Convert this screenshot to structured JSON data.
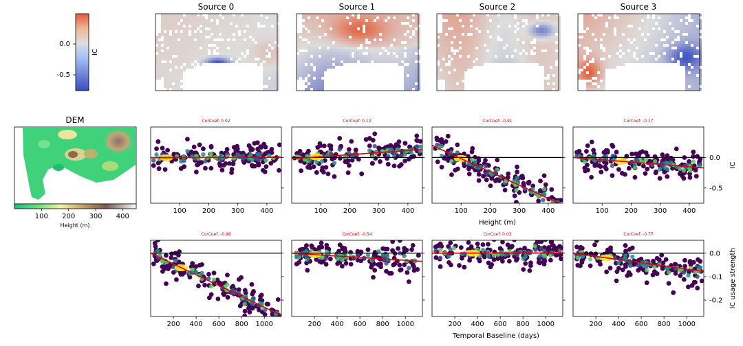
{
  "maps": {
    "titles": [
      "Source 0",
      "Source 1",
      "Source 2",
      "Source 3"
    ],
    "colorbar": {
      "label": "IC",
      "ticks": [
        "0.0",
        "-0.5"
      ],
      "low": "#3b4cc0",
      "mid": "#dddddd",
      "high": "#e8603c"
    }
  },
  "dem": {
    "title": "DEM",
    "xlabel": "Height (m)",
    "ticks": [
      "100",
      "200",
      "300",
      "400"
    ]
  },
  "chart_data": [
    {
      "type": "scatter",
      "row": "height",
      "xlabel": "Height (m)",
      "ylabel": "IC",
      "xlim": [
        0,
        450
      ],
      "ylim": [
        -0.75,
        0.5
      ],
      "xticks": [
        100,
        200,
        300,
        400
      ],
      "yticks": [
        0.0,
        -0.5
      ],
      "panels": [
        {
          "corcoef": "CorCoef: 0.02",
          "fit": [
            [
              0,
              -0.005
            ],
            [
              450,
              0.005
            ]
          ]
        },
        {
          "corcoef": "CorCoef: 0.12",
          "fit": [
            [
              0,
              -0.02
            ],
            [
              450,
              0.13
            ]
          ]
        },
        {
          "corcoef": "CorCoef: -0.91",
          "fit": [
            [
              0,
              0.2
            ],
            [
              450,
              -0.78
            ]
          ]
        },
        {
          "corcoef": "CorCoef: -0.17",
          "fit": [
            [
              0,
              0.0
            ],
            [
              450,
              -0.17
            ]
          ]
        }
      ]
    },
    {
      "type": "scatter",
      "row": "baseline",
      "xlabel": "Temporal Baseline (days)",
      "ylabel": "IC usage strength",
      "xlim": [
        0,
        1150
      ],
      "ylim": [
        -0.27,
        0.055
      ],
      "xticks": [
        200,
        400,
        600,
        800,
        1000
      ],
      "yticks": [
        0.0,
        -0.1,
        -0.2
      ],
      "panels": [
        {
          "corcoef": "CorCoef: -0.96",
          "fit": [
            [
              0,
              0.0
            ],
            [
              1150,
              -0.265
            ]
          ]
        },
        {
          "corcoef": "CorCoef: -0.54",
          "fit": [
            [
              0,
              0.0
            ],
            [
              1150,
              -0.035
            ]
          ]
        },
        {
          "corcoef": "CorCoef: 0.03",
          "fit": [
            [
              0,
              0.0
            ],
            [
              1150,
              0.001
            ]
          ]
        },
        {
          "corcoef": "CorCoef: -0.77",
          "fit": [
            [
              0,
              0.0
            ],
            [
              1150,
              -0.078
            ]
          ]
        }
      ]
    }
  ]
}
